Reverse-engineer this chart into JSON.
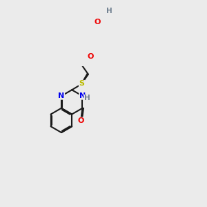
{
  "background_color": "#ebebeb",
  "bond_color": "#1a1a1a",
  "atom_colors": {
    "N": "#0000ee",
    "O": "#ee0000",
    "S": "#bbbb00",
    "H": "#708090",
    "C": "#1a1a1a"
  },
  "figsize": [
    3.0,
    3.0
  ],
  "dpi": 100
}
